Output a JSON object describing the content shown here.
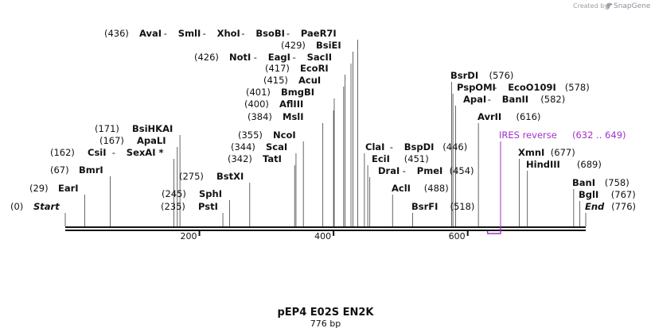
{
  "credit": {
    "prefix": "Created by",
    "brand": "SnapGene"
  },
  "title": "pEP4 E02S EN2K",
  "subtitle": "776 bp",
  "sequence": {
    "length": 776,
    "ticks": [
      200,
      400,
      600
    ]
  },
  "feature": {
    "name": "IRES reverse",
    "range": "(632 .. 649)",
    "start": 632,
    "end": 649,
    "color": "#a330c9"
  },
  "sites": [
    {
      "pos": 0,
      "names": [
        "Start"
      ],
      "italic": true
    },
    {
      "pos": 29,
      "names": [
        "EarI"
      ]
    },
    {
      "pos": 67,
      "names": [
        "BmrI"
      ]
    },
    {
      "pos": 162,
      "names": [
        "CsiI",
        "SexAI *"
      ]
    },
    {
      "pos": 167,
      "names": [
        "ApaLI"
      ]
    },
    {
      "pos": 171,
      "names": [
        "BsiHKAI"
      ]
    },
    {
      "pos": 235,
      "names": [
        "PstI"
      ]
    },
    {
      "pos": 245,
      "names": [
        "SphI"
      ]
    },
    {
      "pos": 275,
      "names": [
        "BstXI"
      ]
    },
    {
      "pos": 342,
      "names": [
        "TatI"
      ]
    },
    {
      "pos": 344,
      "names": [
        "ScaI"
      ]
    },
    {
      "pos": 355,
      "names": [
        "NcoI"
      ]
    },
    {
      "pos": 384,
      "names": [
        "MslI"
      ]
    },
    {
      "pos": 400,
      "names": [
        "AflIII"
      ]
    },
    {
      "pos": 401,
      "names": [
        "BmgBI"
      ]
    },
    {
      "pos": 415,
      "names": [
        "AcuI"
      ]
    },
    {
      "pos": 417,
      "names": [
        "EcoRI"
      ]
    },
    {
      "pos": 426,
      "names": [
        "NotI",
        "EagI",
        "SacII"
      ]
    },
    {
      "pos": 429,
      "names": [
        "BsiEI"
      ]
    },
    {
      "pos": 436,
      "names": [
        "AvaI",
        "SmlI",
        "XhoI",
        "BsoBI",
        "PaeR7I"
      ]
    },
    {
      "pos": 446,
      "names": [
        "ClaI",
        "BspDI"
      ]
    },
    {
      "pos": 451,
      "names": [
        "EciI"
      ]
    },
    {
      "pos": 454,
      "names": [
        "DraI",
        "PmeI"
      ]
    },
    {
      "pos": 488,
      "names": [
        "AclI"
      ]
    },
    {
      "pos": 518,
      "names": [
        "BsrFI"
      ]
    },
    {
      "pos": 576,
      "names": [
        "BsrDI"
      ]
    },
    {
      "pos": 578,
      "names": [
        "PspOMI",
        "EcoO109I"
      ]
    },
    {
      "pos": 582,
      "names": [
        "ApaI",
        "BanII"
      ]
    },
    {
      "pos": 616,
      "names": [
        "AvrII"
      ]
    },
    {
      "pos": 677,
      "names": [
        "XmnI"
      ]
    },
    {
      "pos": 689,
      "names": [
        "HindIII"
      ]
    },
    {
      "pos": 758,
      "names": [
        "BanI"
      ]
    },
    {
      "pos": 767,
      "names": [
        "BglI"
      ]
    },
    {
      "pos": 776,
      "names": [
        "End"
      ],
      "italic": true
    }
  ]
}
